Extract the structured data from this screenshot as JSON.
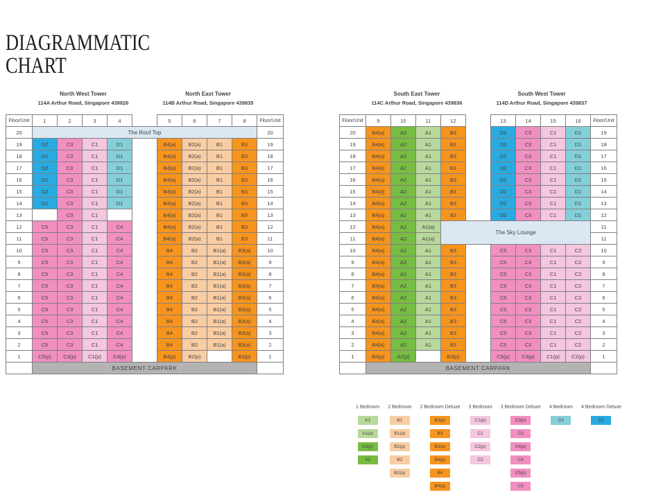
{
  "page": {
    "title_line1": "DIAGRAMMATIC",
    "title_line2": "CHART"
  },
  "towers": [
    {
      "name": "North West Tower",
      "address": "114A Arthur Road, Singapore 439826"
    },
    {
      "name": "North East Tower",
      "address": "114B Arthur Road, Singapore 439835"
    },
    {
      "name": "South East Tower",
      "address": "114C Arthur Road, Singapore 439836"
    },
    {
      "name": "South West Tower",
      "address": "114D Arthur Road, Singapore 439837"
    }
  ],
  "type_colors": {
    "A1": "#b9d89b",
    "A2": "#77bc43",
    "B1": "#f9cda3",
    "B2": "#f9cda3",
    "B3": "#f7941e",
    "B4": "#f7941e",
    "C1": "#f4c6df",
    "C2": "#f4c6df",
    "C3": "#f18fc1",
    "C4": "#f18fc1",
    "C5": "#f18fc1",
    "D1": "#85cfd9",
    "D2": "#29abe2"
  },
  "special_colors": {
    "lounge_bg": "#dbe8f4",
    "basement_bg": "#b3b3b3",
    "border": "#7f7f7f"
  },
  "tables": [
    {
      "header": {
        "floor_label": "Floor/Unit",
        "left_units": [
          "1",
          "2",
          "3",
          "4"
        ],
        "right_units": [
          "5",
          "6",
          "7",
          "8"
        ]
      },
      "rows": [
        {
          "lf": "20",
          "rf": "20",
          "merge": "The Roof Top",
          "style": "lounge"
        },
        {
          "lf": "19",
          "rf": "19",
          "l": [
            "D2",
            "C3",
            "C1",
            "D1"
          ],
          "r": [
            "B4(a)",
            "B2(a)",
            "B1",
            "B3"
          ]
        },
        {
          "lf": "18",
          "rf": "18",
          "l": [
            "D2",
            "C3",
            "C1",
            "D1"
          ],
          "r": [
            "B4(a)",
            "B2(a)",
            "B1",
            "B3"
          ]
        },
        {
          "lf": "17",
          "rf": "17",
          "l": [
            "D2",
            "C3",
            "C1",
            "D1"
          ],
          "r": [
            "B4(a)",
            "B2(a)",
            "B1",
            "B3"
          ]
        },
        {
          "lf": "16",
          "rf": "16",
          "l": [
            "D2",
            "C3",
            "C1",
            "D1"
          ],
          "r": [
            "B4(a)",
            "B2(a)",
            "B1",
            "B3"
          ]
        },
        {
          "lf": "15",
          "rf": "15",
          "l": [
            "D2",
            "C3",
            "C1",
            "D1"
          ],
          "r": [
            "B4(a)",
            "B2(a)",
            "B1",
            "B3"
          ]
        },
        {
          "lf": "14",
          "rf": "14",
          "l": [
            "D2",
            "C3",
            "C1",
            "D1"
          ],
          "r": [
            "B4(a)",
            "B2(a)",
            "B1",
            "B3"
          ]
        },
        {
          "lf": "13",
          "rf": "13",
          "l": [
            "",
            "C3",
            "C1",
            ""
          ],
          "r": [
            "B4(a)",
            "B2(a)",
            "B1",
            "B3"
          ]
        },
        {
          "lf": "12",
          "rf": "12",
          "l": [
            "C5",
            "C3",
            "C1",
            "C4"
          ],
          "r": [
            "B4(a)",
            "B2(a)",
            "B1",
            "B3"
          ]
        },
        {
          "lf": "11",
          "rf": "11",
          "l": [
            "C5",
            "C3",
            "C1",
            "C4"
          ],
          "r": [
            "B4(a)",
            "B2(a)",
            "B1",
            "B3"
          ]
        },
        {
          "lf": "10",
          "rf": "10",
          "l": [
            "C5",
            "C3",
            "C1",
            "C4"
          ],
          "r": [
            "B4",
            "B2",
            "B1(a)",
            "B3(a)"
          ]
        },
        {
          "lf": "9",
          "rf": "9",
          "l": [
            "C5",
            "C3",
            "C1",
            "C4"
          ],
          "r": [
            "B4",
            "B2",
            "B1(a)",
            "B3(a)"
          ]
        },
        {
          "lf": "8",
          "rf": "8",
          "l": [
            "C5",
            "C3",
            "C1",
            "C4"
          ],
          "r": [
            "B4",
            "B2",
            "B1(a)",
            "B3(a)"
          ]
        },
        {
          "lf": "7",
          "rf": "7",
          "l": [
            "C5",
            "C3",
            "C1",
            "C4"
          ],
          "r": [
            "B4",
            "B2",
            "B1(a)",
            "B3(a)"
          ]
        },
        {
          "lf": "6",
          "rf": "6",
          "l": [
            "C5",
            "C3",
            "C1",
            "C4"
          ],
          "r": [
            "B4",
            "B2",
            "B1(a)",
            "B3(a)"
          ]
        },
        {
          "lf": "5",
          "rf": "5",
          "l": [
            "C5",
            "C3",
            "C1",
            "C4"
          ],
          "r": [
            "B4",
            "B2",
            "B1(a)",
            "B3(a)"
          ]
        },
        {
          "lf": "4",
          "rf": "4",
          "l": [
            "C5",
            "C3",
            "C1",
            "C4"
          ],
          "r": [
            "B4",
            "B2",
            "B1(a)",
            "B3(a)"
          ]
        },
        {
          "lf": "3",
          "rf": "3",
          "l": [
            "C5",
            "C3",
            "C1",
            "C4"
          ],
          "r": [
            "B4",
            "B2",
            "B1(a)",
            "B3(a)"
          ]
        },
        {
          "lf": "2",
          "rf": "2",
          "l": [
            "C5",
            "C3",
            "C1",
            "C4"
          ],
          "r": [
            "B4",
            "B2",
            "B1(a)",
            "B3(a)"
          ]
        },
        {
          "lf": "1",
          "rf": "1",
          "l": [
            "C5(p)",
            "C3(p)",
            "C1(p)",
            "C4(p)"
          ],
          "r": [
            "B4(p)",
            "B2(p)",
            "",
            "B3(p)"
          ]
        },
        {
          "lf": "",
          "rf": "",
          "merge": "BASEMENT CARPARK",
          "style": "basement"
        }
      ]
    },
    {
      "header": {
        "floor_label": "Floor/Unit",
        "left_units": [
          "9",
          "10",
          "11",
          "12"
        ],
        "right_units": [
          "13",
          "14",
          "15",
          "16"
        ]
      },
      "rows": [
        {
          "lf": "20",
          "rf": "19",
          "l": [
            "B4(a)",
            "A2",
            "A1",
            "B3"
          ],
          "r": [
            "D2",
            "C3",
            "C1",
            "D1"
          ]
        },
        {
          "lf": "19",
          "rf": "18",
          "l": [
            "B4(a)",
            "A2",
            "A1",
            "B3"
          ],
          "r": [
            "D2",
            "C3",
            "C1",
            "D1"
          ]
        },
        {
          "lf": "18",
          "rf": "17",
          "l": [
            "B4(a)",
            "A2",
            "A1",
            "B3"
          ],
          "r": [
            "D2",
            "C3",
            "C1",
            "D1"
          ]
        },
        {
          "lf": "17",
          "rf": "16",
          "l": [
            "B4(a)",
            "A2",
            "A1",
            "B3"
          ],
          "r": [
            "D2",
            "C3",
            "C1",
            "D1"
          ]
        },
        {
          "lf": "16",
          "rf": "15",
          "l": [
            "B4(a)",
            "A2",
            "A1",
            "B3"
          ],
          "r": [
            "D2",
            "C3",
            "C1",
            "D1"
          ]
        },
        {
          "lf": "15",
          "rf": "14",
          "l": [
            "B4(a)",
            "A2",
            "A1",
            "B3"
          ],
          "r": [
            "D2",
            "C3",
            "C1",
            "D1"
          ]
        },
        {
          "lf": "14",
          "rf": "13",
          "l": [
            "B4(a)",
            "A2",
            "A1",
            "B3"
          ],
          "r": [
            "D2",
            "C3",
            "C1",
            "D1"
          ]
        },
        {
          "lf": "13",
          "rf": "12",
          "l": [
            "B4(a)",
            "A2",
            "A1",
            "B3"
          ],
          "r": [
            "D2",
            "C3",
            "C1",
            "D1"
          ]
        },
        {
          "lf": "12",
          "rf": "11",
          "l": [
            "B4(a)",
            "A2",
            "A1(a)"
          ],
          "rmerge": "The Sky Lounge",
          "rspan": 2
        },
        {
          "lf": "11",
          "rf": "11",
          "l": [
            "B4(a)",
            "A2",
            "A1(a)"
          ],
          "rcont": true
        },
        {
          "lf": "10",
          "rf": "10",
          "l": [
            "B4(a)",
            "A2",
            "A1",
            "B3"
          ],
          "r": [
            "C5",
            "C3",
            "C1",
            "C2"
          ]
        },
        {
          "lf": "9",
          "rf": "9",
          "l": [
            "B4(a)",
            "A2",
            "A1",
            "B3"
          ],
          "r": [
            "C5",
            "C3",
            "C1",
            "C2"
          ]
        },
        {
          "lf": "8",
          "rf": "8",
          "l": [
            "B4(a)",
            "A2",
            "A1",
            "B3"
          ],
          "r": [
            "C5",
            "C3",
            "C1",
            "C2"
          ]
        },
        {
          "lf": "7",
          "rf": "7",
          "l": [
            "B4(a)",
            "A2",
            "A1",
            "B3"
          ],
          "r": [
            "C5",
            "C3",
            "C1",
            "C2"
          ]
        },
        {
          "lf": "6",
          "rf": "6",
          "l": [
            "B4(a)",
            "A2",
            "A1",
            "B3"
          ],
          "r": [
            "C5",
            "C3",
            "C1",
            "C2"
          ]
        },
        {
          "lf": "5",
          "rf": "5",
          "l": [
            "B4(a)",
            "A2",
            "A1",
            "B3"
          ],
          "r": [
            "C5",
            "C3",
            "C1",
            "C2"
          ]
        },
        {
          "lf": "4",
          "rf": "4",
          "l": [
            "B4(a)",
            "A2",
            "A1",
            "B3"
          ],
          "r": [
            "C5",
            "C3",
            "C1",
            "C2"
          ]
        },
        {
          "lf": "3",
          "rf": "3",
          "l": [
            "B4(a)",
            "A2",
            "A1",
            "B3"
          ],
          "r": [
            "C5",
            "C3",
            "C1",
            "C2"
          ]
        },
        {
          "lf": "2",
          "rf": "2",
          "l": [
            "B4(a)",
            "A2",
            "A1",
            "B3"
          ],
          "r": [
            "C5",
            "C3",
            "C1",
            "C2"
          ]
        },
        {
          "lf": "1",
          "rf": "1",
          "l": [
            "B4(p)",
            "A2(p)",
            "",
            "B3(p)"
          ],
          "r": [
            "C5(p)",
            "C3(p)",
            "C1(p)",
            "C2(p)"
          ]
        },
        {
          "lf": "",
          "rf": "",
          "merge": "BASEMENT CARPARK",
          "style": "basement"
        }
      ]
    }
  ],
  "legend": {
    "columns": [
      {
        "label": "1 Bedroom",
        "items": [
          "A1",
          "A1(a)",
          "A2(p)",
          "A2"
        ]
      },
      {
        "label": "2 Bedroom",
        "items": [
          "B1",
          "B1(a)",
          "B2(p)",
          "B2",
          "B2(a)"
        ]
      },
      {
        "label": "2 Bedroom Deluxe",
        "items": [
          "B3(p)",
          "B3",
          "B3(a)",
          "B4(p)",
          "B4",
          "B4(a)"
        ]
      },
      {
        "label": "3 Bedroom",
        "items": [
          "C1(p)",
          "C1",
          "C2(p)",
          "C2"
        ]
      },
      {
        "label": "3 Bedroom Deluxe",
        "items": [
          "C3(p)",
          "C3",
          "C4(p)",
          "C4",
          "C5(p)",
          "C5"
        ]
      },
      {
        "label": "4 Bedroom",
        "items": [
          "D1"
        ]
      },
      {
        "label": "4 Bedroom Deluxe",
        "items": [
          "D2"
        ]
      }
    ]
  }
}
